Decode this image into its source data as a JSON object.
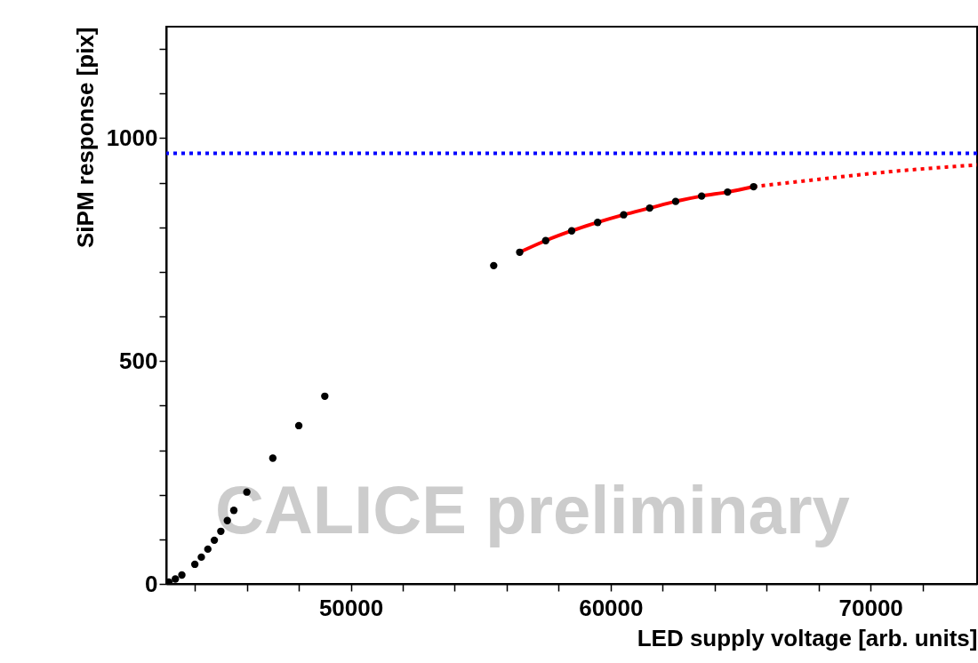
{
  "chart_data": {
    "type": "scatter",
    "xlabel": "LED supply voltage [arb. units]",
    "ylabel": "SiPM response [pix]",
    "annotations": [
      "CALICE   preliminary"
    ],
    "xlim": [
      42900,
      74100
    ],
    "xticks": [
      {
        "value": 44000,
        "label": null
      },
      {
        "value": 46000,
        "label": null
      },
      {
        "value": 48000,
        "label": null
      },
      50000,
      {
        "value": 52000,
        "label": null
      },
      {
        "value": 54000,
        "label": null
      },
      {
        "value": 56000,
        "label": null
      },
      {
        "value": 58000,
        "label": null
      },
      60000,
      {
        "value": 62000,
        "label": null
      },
      {
        "value": 64000,
        "label": null
      },
      {
        "value": 66000,
        "label": null
      },
      {
        "value": 68000,
        "label": null
      },
      70000,
      {
        "value": 72000,
        "label": null
      }
    ],
    "ylim": [
      0,
      1250
    ],
    "yticks": [
      0,
      {
        "value": 100,
        "label": null
      },
      {
        "value": 200,
        "label": null
      },
      {
        "value": 300,
        "label": null
      },
      {
        "value": 400,
        "label": null
      },
      500,
      {
        "value": 600,
        "label": null
      },
      {
        "value": 700,
        "label": null
      },
      {
        "value": 800,
        "label": null
      },
      {
        "value": 900,
        "label": null
      },
      1000,
      {
        "value": 1100,
        "label": null
      },
      {
        "value": 1200,
        "label": null
      }
    ],
    "grid": false,
    "ref_lines": [
      {
        "axis": "y",
        "value": 966,
        "color": "#0000ff",
        "line_style": "dotted"
      }
    ],
    "series": [
      {
        "type": "line",
        "color": "#ff0000",
        "line_style": "solid",
        "x": [
          56500,
          57500,
          58500,
          59500,
          60500,
          61500,
          62500,
          63500,
          64500,
          65500
        ],
        "values": [
          744,
          770,
          792,
          811,
          828,
          843,
          858,
          870,
          879,
          891
        ]
      },
      {
        "type": "line",
        "color": "#ff0000",
        "line_style": "dotted",
        "x": [
          65500,
          67000,
          70800,
          74100
        ],
        "values": [
          891,
          901,
          925,
          940
        ]
      },
      {
        "color": "#000000",
        "marker": "circle",
        "x": [
          43000,
          43250,
          43500,
          44000,
          44250,
          44500,
          44750,
          45000,
          45250,
          45500,
          46000,
          47000,
          48000,
          49000,
          55500,
          56500,
          57500,
          58500,
          59500,
          60500,
          61500,
          62500,
          63500,
          64500,
          65500
        ],
        "values": [
          4,
          11,
          20,
          44,
          60,
          78,
          98,
          118,
          142,
          165,
          206,
          282,
          355,
          421,
          714,
          744,
          770,
          792,
          811,
          828,
          843,
          858,
          870,
          879,
          891
        ]
      }
    ]
  }
}
